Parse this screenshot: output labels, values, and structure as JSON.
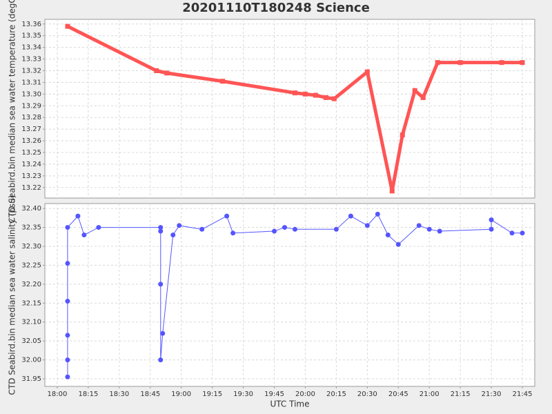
{
  "chart_data": [
    {
      "type": "line",
      "title": "20201110T180248 Science",
      "ylabel": "CTD Seabird.bin median sea water temperature (degC)",
      "marker": "square",
      "color": "#ff5555",
      "grid": true,
      "x": [
        "18:05",
        "18:48",
        "18:53",
        "19:20",
        "19:55",
        "20:00",
        "20:05",
        "20:10",
        "20:14",
        "20:30",
        "20:42",
        "20:47",
        "20:53",
        "20:57",
        "21:04",
        "21:15",
        "21:35",
        "21:45"
      ],
      "values": [
        13.358,
        13.32,
        13.318,
        13.311,
        13.301,
        13.3,
        13.299,
        13.297,
        13.296,
        13.319,
        13.217,
        13.265,
        13.303,
        13.297,
        13.327,
        13.327,
        13.327,
        13.327
      ],
      "xlim": [
        "17:54",
        "21:51"
      ],
      "ylim": [
        13.211,
        13.364
      ],
      "yticks": [
        13.36,
        13.35,
        13.34,
        13.33,
        13.32,
        13.31,
        {
          "value": 13.3,
          "label": "13.30"
        },
        13.29,
        13.28,
        13.27,
        13.26,
        13.25,
        13.24,
        13.23,
        13.22
      ]
    },
    {
      "type": "line",
      "xlabel": "UTC Time",
      "ylabel": "CTD Seabird.bin median sea water salinity (psu)",
      "marker": "circle",
      "color": "#5555ff",
      "grid": true,
      "x": [
        "18:05",
        "18:05",
        "18:05",
        "18:05",
        "18:05",
        "18:05",
        "18:10",
        "18:13",
        "18:20",
        "18:50",
        "18:50",
        "18:50",
        "18:50",
        "18:51",
        "18:56",
        "18:59",
        "19:10",
        "19:22",
        "19:25",
        "19:45",
        "19:50",
        "19:55",
        "20:15",
        "20:22",
        "20:30",
        "20:35",
        "20:40",
        "20:45",
        "20:55",
        "21:00",
        "21:05",
        "21:30",
        "21:30",
        "21:40",
        "21:45"
      ],
      "values": [
        31.955,
        32.0,
        32.065,
        32.155,
        32.255,
        32.35,
        32.38,
        32.33,
        32.35,
        32.35,
        32.34,
        32.2,
        32.0,
        32.07,
        32.33,
        32.355,
        32.345,
        32.38,
        32.335,
        32.34,
        32.35,
        32.345,
        32.345,
        32.38,
        32.355,
        32.385,
        32.33,
        32.305,
        32.355,
        32.345,
        32.34,
        32.345,
        32.37,
        32.335,
        32.335
      ],
      "xlim": [
        "17:54",
        "21:51"
      ],
      "ylim": [
        31.93,
        32.413
      ],
      "yticks": [
        {
          "value": 32.4,
          "label": "32.40"
        },
        32.35,
        {
          "value": 32.3,
          "label": "32.30"
        },
        32.25,
        {
          "value": 32.2,
          "label": "32.20"
        },
        32.15,
        {
          "value": 32.1,
          "label": "32.10"
        },
        32.05,
        {
          "value": 32,
          "label": "32.00"
        },
        31.95
      ],
      "xticks": [
        "18:00",
        "18:15",
        "18:30",
        "18:45",
        "19:00",
        "19:15",
        "19:30",
        "19:45",
        "20:00",
        "20:15",
        "20:30",
        "20:45",
        "21:00",
        "21:15",
        "21:30",
        "21:45"
      ]
    }
  ]
}
